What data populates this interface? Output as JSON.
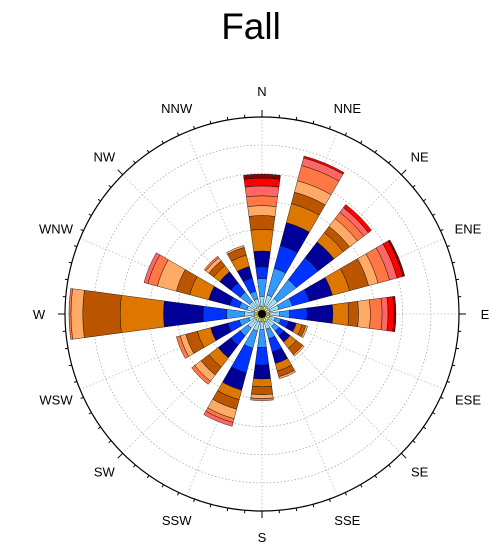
{
  "chart_data": {
    "type": "windrose",
    "title": "Fall",
    "directions": [
      "N",
      "NNE",
      "NE",
      "ENE",
      "E",
      "ESE",
      "SE",
      "SSE",
      "S",
      "SSW",
      "SW",
      "WSW",
      "W",
      "WNW",
      "NW",
      "NNW"
    ],
    "ring_count": 7,
    "max_radius": 1.0,
    "bin_colors": [
      "#ffff66",
      "#99ddff",
      "#3399ff",
      "#0033ff",
      "#000099",
      "#dd7700",
      "#bb5500",
      "#ffaa66",
      "#ff7744",
      "#ff6666",
      "#ff0000",
      "#880000",
      "#cc44cc",
      "#000000"
    ],
    "series": [
      {
        "direction": "N",
        "edges": [
          0.04,
          0.09,
          0.18,
          0.24,
          0.32,
          0.43,
          0.5,
          0.55,
          0.6,
          0.65,
          0.69,
          0.71
        ]
      },
      {
        "direction": "NNE",
        "edges": [
          0.04,
          0.1,
          0.24,
          0.36,
          0.48,
          0.58,
          0.64,
          0.7,
          0.78,
          0.82,
          0.83
        ]
      },
      {
        "direction": "NE",
        "edges": [
          0.04,
          0.1,
          0.22,
          0.36,
          0.46,
          0.52,
          0.56,
          0.61,
          0.65,
          0.68,
          0.7
        ]
      },
      {
        "direction": "ENE",
        "edges": [
          0.04,
          0.09,
          0.16,
          0.25,
          0.37,
          0.46,
          0.56,
          0.61,
          0.67,
          0.71,
          0.74,
          0.75
        ]
      },
      {
        "direction": "E",
        "edges": [
          0.04,
          0.09,
          0.14,
          0.23,
          0.36,
          0.44,
          0.49,
          0.55,
          0.61,
          0.64,
          0.67,
          0.68
        ]
      },
      {
        "direction": "ESE",
        "edges": [
          0.04,
          0.07,
          0.1,
          0.14,
          0.18,
          0.21,
          0.23,
          0.24
        ]
      },
      {
        "direction": "SE",
        "edges": [
          0.04,
          0.08,
          0.11,
          0.14,
          0.18,
          0.22,
          0.26,
          0.27
        ]
      },
      {
        "direction": "SSE",
        "edges": [
          0.04,
          0.08,
          0.13,
          0.2,
          0.26,
          0.3,
          0.33,
          0.34
        ]
      },
      {
        "direction": "S",
        "edges": [
          0.04,
          0.08,
          0.17,
          0.26,
          0.33,
          0.37,
          0.41,
          0.43,
          0.44
        ]
      },
      {
        "direction": "SSW",
        "edges": [
          0.04,
          0.09,
          0.18,
          0.31,
          0.4,
          0.45,
          0.5,
          0.55,
          0.57,
          0.59
        ]
      },
      {
        "direction": "SW",
        "edges": [
          0.04,
          0.09,
          0.14,
          0.2,
          0.28,
          0.34,
          0.39,
          0.43,
          0.45
        ]
      },
      {
        "direction": "WSW",
        "edges": [
          0.04,
          0.07,
          0.12,
          0.18,
          0.27,
          0.34,
          0.4,
          0.43,
          0.45
        ]
      },
      {
        "direction": "W",
        "edges": [
          0.04,
          0.09,
          0.18,
          0.3,
          0.5,
          0.72,
          0.91,
          0.97,
          0.98
        ]
      },
      {
        "direction": "WNW",
        "edges": [
          0.04,
          0.08,
          0.12,
          0.17,
          0.28,
          0.38,
          0.45,
          0.55,
          0.6,
          0.62
        ]
      },
      {
        "direction": "NW",
        "edges": [
          0.04,
          0.08,
          0.14,
          0.2,
          0.27,
          0.31,
          0.34,
          0.36,
          0.37
        ]
      },
      {
        "direction": "NNW",
        "edges": [
          0.04,
          0.08,
          0.12,
          0.19,
          0.25,
          0.31,
          0.35,
          0.36
        ]
      }
    ]
  }
}
